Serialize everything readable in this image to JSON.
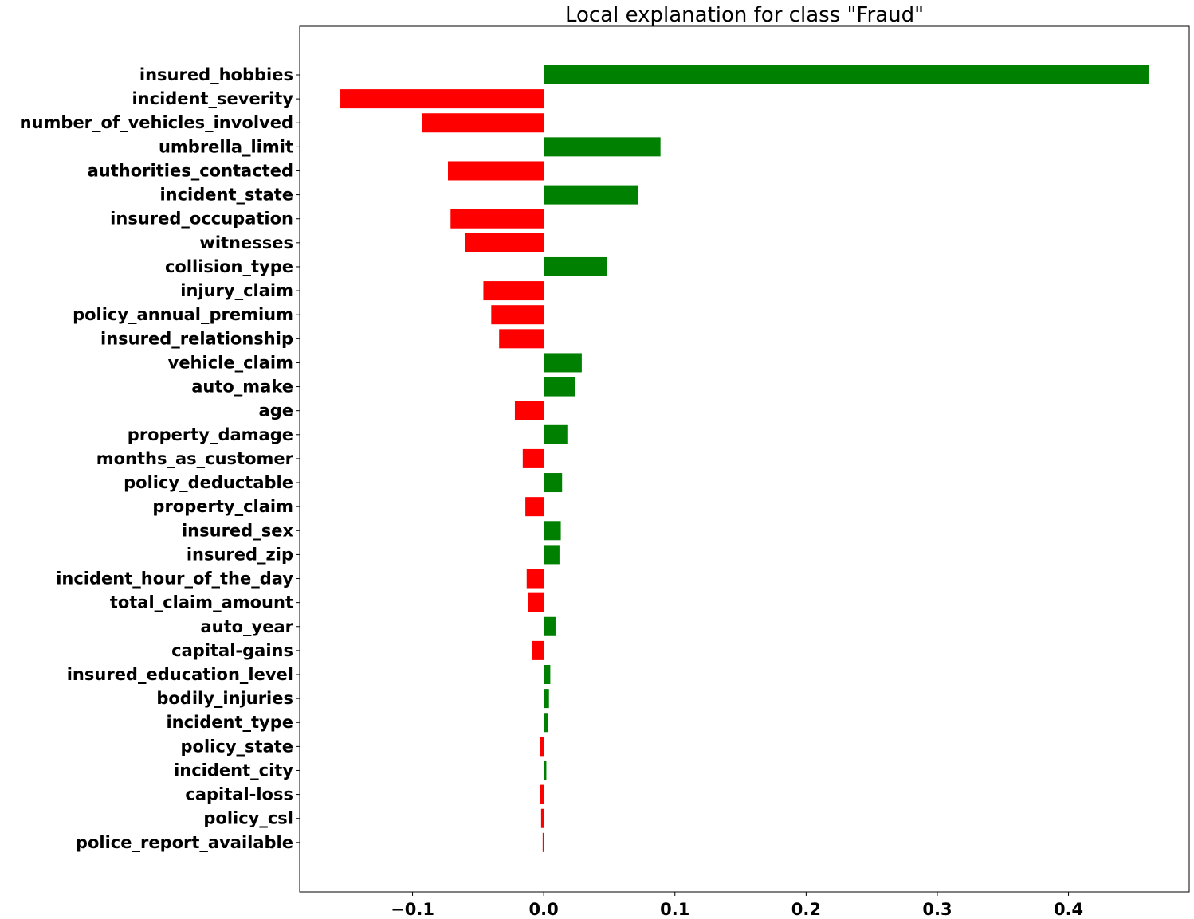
{
  "chart_data": {
    "type": "bar",
    "orientation": "horizontal",
    "title": "Local explanation for class \"Fraud\"",
    "xlabel": "",
    "ylabel": "",
    "xlim": [
      -0.186,
      0.492
    ],
    "x_ticks": [
      -0.1,
      0.0,
      0.1,
      0.2,
      0.3,
      0.4
    ],
    "x_tick_labels": [
      "−0.1",
      "0.0",
      "0.1",
      "0.2",
      "0.3",
      "0.4"
    ],
    "grid": false,
    "colors": {
      "positive": "#008000",
      "negative": "#ff0000"
    },
    "categories": [
      "insured_hobbies",
      "incident_severity",
      "number_of_vehicles_involved",
      "umbrella_limit",
      "authorities_contacted",
      "incident_state",
      "insured_occupation",
      "witnesses",
      "collision_type",
      "injury_claim",
      "policy_annual_premium",
      "insured_relationship",
      "vehicle_claim",
      "auto_make",
      "age",
      "property_damage",
      "months_as_customer",
      "policy_deductable",
      "property_claim",
      "insured_sex",
      "insured_zip",
      "incident_hour_of_the_day",
      "total_claim_amount",
      "auto_year",
      "capital-gains",
      "insured_education_level",
      "bodily_injuries",
      "incident_type",
      "policy_state",
      "incident_city",
      "capital-loss",
      "policy_csl",
      "police_report_available"
    ],
    "values": [
      0.461,
      -0.155,
      -0.093,
      0.089,
      -0.073,
      0.072,
      -0.071,
      -0.06,
      0.048,
      -0.046,
      -0.04,
      -0.034,
      0.029,
      0.024,
      -0.022,
      0.018,
      -0.016,
      0.014,
      -0.014,
      0.013,
      0.012,
      -0.013,
      -0.012,
      0.009,
      -0.009,
      0.005,
      0.004,
      0.003,
      -0.003,
      0.002,
      -0.003,
      -0.002,
      -0.0008
    ]
  }
}
